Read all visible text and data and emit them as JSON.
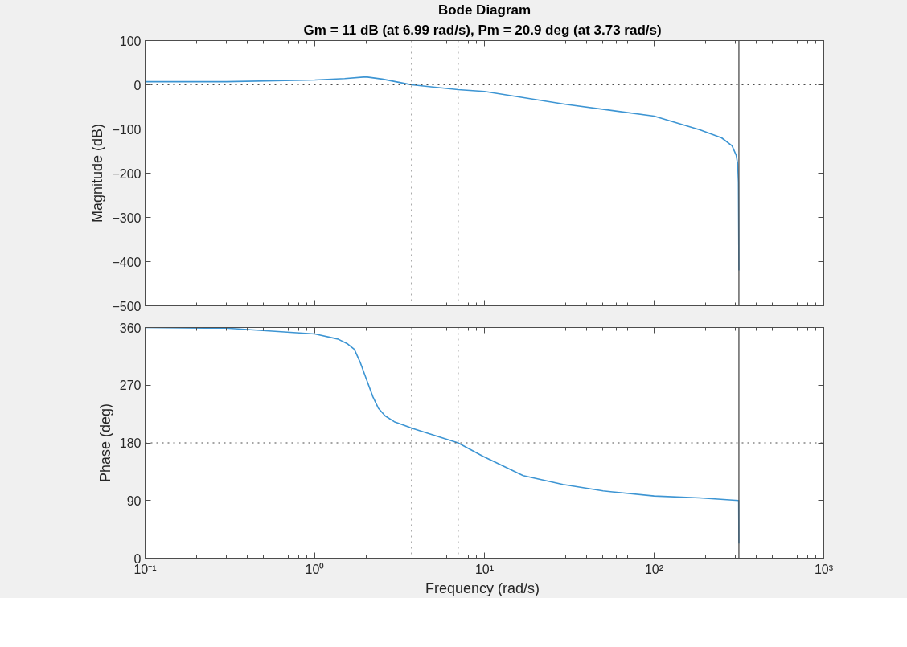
{
  "chart_data": [
    {
      "type": "line",
      "title": "Bode Diagram",
      "subtitle": "Gm = 11 dB (at 6.99 rad/s),  Pm = 20.9 deg (at 3.73 rad/s)",
      "ylabel": "Magnitude (dB)",
      "log": "x",
      "grid": false,
      "tick_labels": "y",
      "xlim": [
        0.1,
        1000
      ],
      "xticks": [
        {
          "value": 0.1,
          "label": null
        },
        {
          "value": 1,
          "label": null
        },
        {
          "value": 10,
          "label": null
        },
        {
          "value": 100,
          "label": null
        },
        {
          "value": 1000,
          "label": null
        }
      ],
      "ylim": [
        -500,
        100
      ],
      "yticks": [
        -500,
        -400,
        -300,
        -200,
        -100,
        0,
        100
      ],
      "series": [
        {
          "color": "#3d95d3",
          "x": [
            0.1,
            0.3,
            1,
            1.5,
            2,
            2.5,
            3,
            3.73,
            6.99,
            10,
            30,
            100,
            186,
            250,
            288,
            305,
            311,
            314,
            316
          ],
          "values": [
            7,
            7,
            11,
            14,
            18,
            13,
            7,
            0,
            -11,
            -15,
            -44,
            -71,
            -102,
            -120,
            -138,
            -160,
            -180,
            -220,
            -420
          ]
        }
      ],
      "ref_lines": [
        {
          "axis": "y",
          "value": 0,
          "color": "#4d4d4d",
          "line_style": "dotted"
        },
        {
          "axis": "x",
          "value": 3.73,
          "color": "#4d4d4d",
          "line_style": "dotted"
        },
        {
          "axis": "x",
          "value": 6.99,
          "color": "#4d4d4d",
          "line_style": "dotted"
        },
        {
          "axis": "x",
          "value": 316,
          "color": "#4d4d4d",
          "line_style": "solid"
        }
      ]
    },
    {
      "type": "line",
      "ylabel": "Phase (deg)",
      "xlabel": "Frequency  (rad/s)",
      "log": "x",
      "grid": false,
      "xlim": [
        0.1,
        1000
      ],
      "xticks": [
        {
          "value": 0.1,
          "label": "10⁻¹"
        },
        {
          "value": 1,
          "label": "10⁰"
        },
        {
          "value": 10,
          "label": "10¹"
        },
        {
          "value": 100,
          "label": "10²"
        },
        {
          "value": 1000,
          "label": "10³"
        }
      ],
      "ylim": [
        0,
        360
      ],
      "yticks": [
        0,
        90,
        180,
        270,
        360
      ],
      "series": [
        {
          "color": "#3d95d3",
          "x": [
            0.1,
            0.3,
            1,
            1.37,
            1.55,
            1.71,
            1.85,
            2.01,
            2.2,
            2.37,
            2.6,
            2.94,
            3.73,
            6.99,
            9.8,
            16.9,
            29,
            50,
            100,
            186,
            315,
            316
          ],
          "values": [
            360,
            359,
            350,
            342,
            335,
            326,
            306,
            280,
            252,
            234,
            222,
            213,
            203,
            180,
            159,
            129,
            115,
            105,
            97,
            94,
            90,
            23
          ]
        }
      ],
      "ref_lines": [
        {
          "axis": "y",
          "value": 180,
          "color": "#4d4d4d",
          "line_style": "dotted"
        },
        {
          "axis": "x",
          "value": 3.73,
          "color": "#4d4d4d",
          "line_style": "dotted"
        },
        {
          "axis": "x",
          "value": 6.99,
          "color": "#4d4d4d",
          "line_style": "dotted"
        },
        {
          "axis": "x",
          "value": 316,
          "color": "#4d4d4d",
          "line_style": "solid"
        }
      ]
    }
  ]
}
